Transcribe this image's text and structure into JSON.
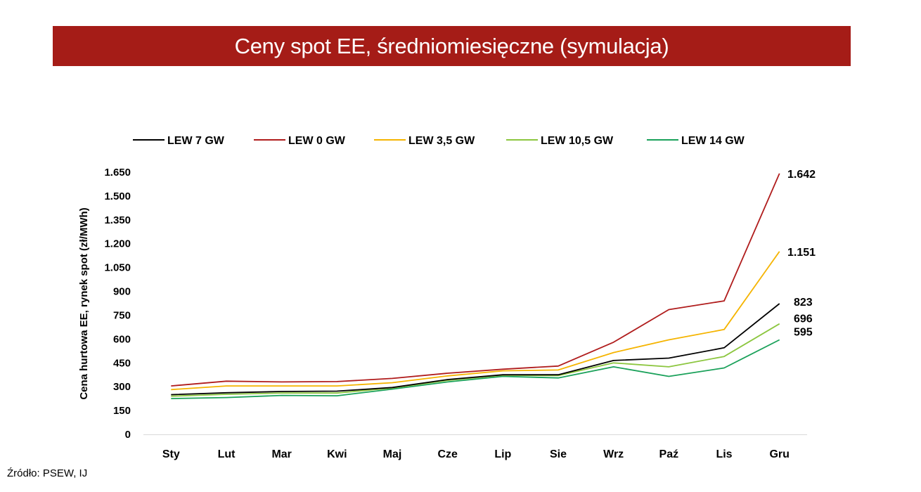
{
  "header": {
    "title": "Ceny spot EE, średniomiesięczne (symulacja)"
  },
  "footer": {
    "source": "Źródło: PSEW, IJ"
  },
  "colors": {
    "banner": "#a51c17"
  },
  "chart_data": {
    "type": "line",
    "title": "",
    "xlabel": "",
    "ylabel": "Cena hurtowa EE, rynek spot (zł/MWh)",
    "categories": [
      "Sty",
      "Lut",
      "Mar",
      "Kwi",
      "Maj",
      "Cze",
      "Lip",
      "Sie",
      "Wrz",
      "Paź",
      "Lis",
      "Gru"
    ],
    "ylim": [
      0,
      1650
    ],
    "yticks": [
      0,
      150,
      300,
      450,
      600,
      750,
      900,
      1050,
      1200,
      1350,
      1500,
      1650
    ],
    "ytick_labels": [
      "0",
      "150",
      "300",
      "450",
      "600",
      "750",
      "900",
      "1.050",
      "1.200",
      "1.350",
      "1.500",
      "1.650"
    ],
    "grid": false,
    "legend_position": "top",
    "series": [
      {
        "name": "LEW 7 GW",
        "color": "#000000",
        "values": [
          250,
          262,
          270,
          272,
          295,
          345,
          375,
          375,
          465,
          480,
          545,
          823
        ],
        "end_label": "823"
      },
      {
        "name": "LEW 0 GW",
        "color": "#b01c1c",
        "values": [
          305,
          335,
          330,
          332,
          352,
          385,
          410,
          430,
          580,
          785,
          840,
          1642
        ],
        "end_label": "1.642"
      },
      {
        "name": "LEW 3,5 GW",
        "color": "#f5b400",
        "values": [
          282,
          305,
          305,
          305,
          325,
          368,
          400,
          405,
          515,
          595,
          660,
          1151
        ],
        "end_label": "1.151"
      },
      {
        "name": "LEW 10,5 GW",
        "color": "#8cc63f",
        "values": [
          240,
          252,
          260,
          260,
          292,
          340,
          372,
          370,
          450,
          425,
          490,
          696
        ],
        "end_label": "696"
      },
      {
        "name": "LEW 14 GW",
        "color": "#1aa15a",
        "values": [
          225,
          232,
          245,
          243,
          285,
          330,
          365,
          355,
          425,
          365,
          418,
          595
        ],
        "end_label": "595"
      }
    ]
  }
}
